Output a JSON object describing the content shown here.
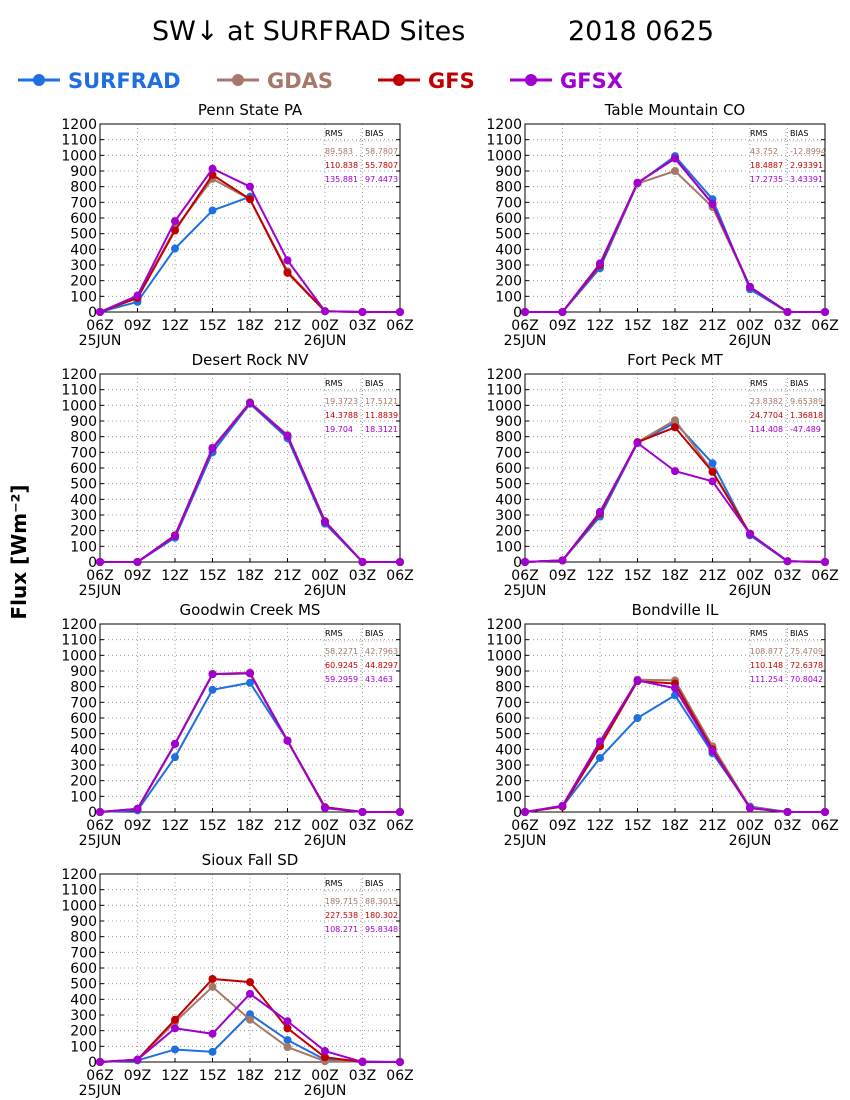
{
  "title": "SW↓ at SURFRAD Sites",
  "date_label": "2018 0625",
  "ylabel": "Flux [Wm⁻²]",
  "legend": [
    {
      "name": "SURFRAD",
      "color": "#1e6fe0"
    },
    {
      "name": "GDAS",
      "color": "#a5786a"
    },
    {
      "name": "GFS",
      "color": "#c00000"
    },
    {
      "name": "GFSX",
      "color": "#a000d0"
    }
  ],
  "stats_headers": [
    "RMS",
    "BIAS"
  ],
  "chart_data": [
    {
      "type": "line",
      "title": "Penn State PA",
      "categories": [
        "06Z",
        "09Z",
        "12Z",
        "15Z",
        "18Z",
        "21Z",
        "00Z",
        "03Z",
        "06Z"
      ],
      "date_labels": [
        "25JUN",
        "26JUN"
      ],
      "ylim": [
        0,
        1200
      ],
      "yticks": [
        0,
        100,
        200,
        300,
        400,
        500,
        600,
        700,
        800,
        900,
        1000,
        1100,
        1200
      ],
      "grid": true,
      "series": [
        {
          "name": "SURFRAD",
          "color": "#1e6fe0",
          "values": [
            0,
            65,
            405,
            648,
            735,
            null,
            null,
            null,
            null
          ]
        },
        {
          "name": "GDAS",
          "color": "#a5786a",
          "values": [
            0,
            90,
            530,
            850,
            720,
            260,
            5,
            0,
            0
          ]
        },
        {
          "name": "GFS",
          "color": "#c00000",
          "values": [
            0,
            90,
            520,
            875,
            720,
            250,
            5,
            0,
            0
          ]
        },
        {
          "name": "GFSX",
          "color": "#a000d0",
          "values": [
            0,
            105,
            580,
            915,
            800,
            330,
            5,
            0,
            0
          ]
        }
      ],
      "stats": [
        {
          "rms": "89.583",
          "bias": "58.7807"
        },
        {
          "rms": "110.838",
          "bias": "55.7807"
        },
        {
          "rms": "135.881",
          "bias": "97.4473"
        }
      ]
    },
    {
      "type": "line",
      "title": "Table Mountain CO",
      "categories": [
        "06Z",
        "09Z",
        "12Z",
        "15Z",
        "18Z",
        "21Z",
        "00Z",
        "03Z",
        "06Z"
      ],
      "date_labels": [
        "25JUN",
        "26JUN"
      ],
      "ylim": [
        0,
        1200
      ],
      "yticks": [
        0,
        100,
        200,
        300,
        400,
        500,
        600,
        700,
        800,
        900,
        1000,
        1100,
        1200
      ],
      "grid": true,
      "series": [
        {
          "name": "SURFRAD",
          "color": "#1e6fe0",
          "values": [
            0,
            0,
            280,
            820,
            995,
            720,
            145,
            0,
            0
          ]
        },
        {
          "name": "GDAS",
          "color": "#a5786a",
          "values": [
            0,
            0,
            300,
            820,
            900,
            670,
            160,
            0,
            0
          ]
        },
        {
          "name": "GFS",
          "color": "#c00000",
          "values": [
            0,
            0,
            300,
            825,
            980,
            690,
            160,
            0,
            0
          ]
        },
        {
          "name": "GFSX",
          "color": "#a000d0",
          "values": [
            0,
            0,
            310,
            825,
            980,
            690,
            160,
            0,
            0
          ]
        }
      ],
      "stats": [
        {
          "rms": "43.752",
          "bias": "-12.8994"
        },
        {
          "rms": "18.4887",
          "bias": "2.93391"
        },
        {
          "rms": "17.2735",
          "bias": "3.43391"
        }
      ]
    },
    {
      "type": "line",
      "title": "Desert Rock NV",
      "categories": [
        "06Z",
        "09Z",
        "12Z",
        "15Z",
        "18Z",
        "21Z",
        "00Z",
        "03Z",
        "06Z"
      ],
      "date_labels": [
        "25JUN",
        "26JUN"
      ],
      "ylim": [
        0,
        1200
      ],
      "yticks": [
        0,
        100,
        200,
        300,
        400,
        500,
        600,
        700,
        800,
        900,
        1000,
        1100,
        1200
      ],
      "grid": true,
      "series": [
        {
          "name": "SURFRAD",
          "color": "#1e6fe0",
          "values": [
            0,
            0,
            155,
            700,
            1010,
            790,
            245,
            0,
            0
          ]
        },
        {
          "name": "GDAS",
          "color": "#a5786a",
          "values": [
            0,
            0,
            170,
            730,
            1020,
            810,
            260,
            0,
            0
          ]
        },
        {
          "name": "GFS",
          "color": "#c00000",
          "values": [
            0,
            0,
            170,
            725,
            1015,
            805,
            260,
            0,
            0
          ]
        },
        {
          "name": "GFSX",
          "color": "#a000d0",
          "values": [
            0,
            0,
            165,
            725,
            1015,
            805,
            255,
            0,
            0
          ]
        }
      ],
      "stats": [
        {
          "rms": "19.3723",
          "bias": "17.5121"
        },
        {
          "rms": "14.3788",
          "bias": "11.8839"
        },
        {
          "rms": "19.704",
          "bias": "18.3121"
        }
      ]
    },
    {
      "type": "line",
      "title": "Fort Peck MT",
      "categories": [
        "06Z",
        "09Z",
        "12Z",
        "15Z",
        "18Z",
        "21Z",
        "00Z",
        "03Z",
        "06Z"
      ],
      "date_labels": [
        "25JUN",
        "26JUN"
      ],
      "ylim": [
        0,
        1200
      ],
      "yticks": [
        0,
        100,
        200,
        300,
        400,
        500,
        600,
        700,
        800,
        900,
        1000,
        1100,
        1200
      ],
      "grid": true,
      "series": [
        {
          "name": "SURFRAD",
          "color": "#1e6fe0",
          "values": [
            0,
            10,
            290,
            760,
            890,
            630,
            170,
            5,
            0
          ]
        },
        {
          "name": "GDAS",
          "color": "#a5786a",
          "values": [
            0,
            10,
            310,
            765,
            905,
            580,
            180,
            5,
            0
          ]
        },
        {
          "name": "GFS",
          "color": "#c00000",
          "values": [
            0,
            10,
            310,
            765,
            860,
            575,
            180,
            5,
            0
          ]
        },
        {
          "name": "GFSX",
          "color": "#a000d0",
          "values": [
            0,
            10,
            320,
            760,
            580,
            515,
            180,
            5,
            0
          ]
        }
      ],
      "stats": [
        {
          "rms": "23.8382",
          "bias": "9.65389"
        },
        {
          "rms": "24.7704",
          "bias": "1.36818"
        },
        {
          "rms": "114.408",
          "bias": "-47.489"
        }
      ]
    },
    {
      "type": "line",
      "title": "Goodwin Creek MS",
      "categories": [
        "06Z",
        "09Z",
        "12Z",
        "15Z",
        "18Z",
        "21Z",
        "00Z",
        "03Z",
        "06Z"
      ],
      "date_labels": [
        "25JUN",
        "26JUN"
      ],
      "ylim": [
        0,
        1200
      ],
      "yticks": [
        0,
        100,
        200,
        300,
        400,
        500,
        600,
        700,
        800,
        900,
        1000,
        1100,
        1200
      ],
      "grid": true,
      "series": [
        {
          "name": "SURFRAD",
          "color": "#1e6fe0",
          "values": [
            0,
            10,
            350,
            780,
            825,
            455,
            30,
            0,
            0
          ]
        },
        {
          "name": "GDAS",
          "color": "#a5786a",
          "values": [
            0,
            20,
            435,
            880,
            890,
            455,
            30,
            0,
            0
          ]
        },
        {
          "name": "GFS",
          "color": "#c00000",
          "values": [
            0,
            20,
            435,
            880,
            885,
            455,
            30,
            0,
            0
          ]
        },
        {
          "name": "GFSX",
          "color": "#a000d0",
          "values": [
            0,
            20,
            435,
            880,
            885,
            455,
            25,
            0,
            0
          ]
        }
      ],
      "stats": [
        {
          "rms": "58.2271",
          "bias": "42.7963"
        },
        {
          "rms": "60.9245",
          "bias": "44.8297"
        },
        {
          "rms": "59.2959",
          "bias": "43.463"
        }
      ]
    },
    {
      "type": "line",
      "title": "Bondville IL",
      "categories": [
        "06Z",
        "09Z",
        "12Z",
        "15Z",
        "18Z",
        "21Z",
        "00Z",
        "03Z",
        "06Z"
      ],
      "date_labels": [
        "25JUN",
        "26JUN"
      ],
      "ylim": [
        0,
        1200
      ],
      "yticks": [
        0,
        100,
        200,
        300,
        400,
        500,
        600,
        700,
        800,
        900,
        1000,
        1100,
        1200
      ],
      "grid": true,
      "series": [
        {
          "name": "SURFRAD",
          "color": "#1e6fe0",
          "values": [
            0,
            35,
            345,
            600,
            745,
            375,
            35,
            0,
            0
          ]
        },
        {
          "name": "GDAS",
          "color": "#a5786a",
          "values": [
            0,
            35,
            430,
            845,
            840,
            420,
            30,
            0,
            0
          ]
        },
        {
          "name": "GFS",
          "color": "#c00000",
          "values": [
            0,
            35,
            420,
            835,
            820,
            400,
            25,
            0,
            0
          ]
        },
        {
          "name": "GFSX",
          "color": "#a000d0",
          "values": [
            0,
            40,
            450,
            840,
            790,
            390,
            25,
            0,
            0
          ]
        }
      ],
      "stats": [
        {
          "rms": "108.877",
          "bias": "75.4709"
        },
        {
          "rms": "110.148",
          "bias": "72.6378"
        },
        {
          "rms": "111.254",
          "bias": "70.8042"
        }
      ]
    },
    {
      "type": "line",
      "title": "Sioux Fall SD",
      "categories": [
        "06Z",
        "09Z",
        "12Z",
        "15Z",
        "18Z",
        "21Z",
        "00Z",
        "03Z",
        "06Z"
      ],
      "date_labels": [
        "25JUN",
        "26JUN"
      ],
      "ylim": [
        0,
        1200
      ],
      "yticks": [
        0,
        100,
        200,
        300,
        400,
        500,
        600,
        700,
        800,
        900,
        1000,
        1100,
        1200
      ],
      "grid": true,
      "series": [
        {
          "name": "SURFRAD",
          "color": "#1e6fe0",
          "values": [
            0,
            10,
            80,
            65,
            305,
            140,
            15,
            0,
            null
          ]
        },
        {
          "name": "GDAS",
          "color": "#a5786a",
          "values": [
            0,
            15,
            255,
            480,
            270,
            95,
            5,
            5,
            0
          ]
        },
        {
          "name": "GFS",
          "color": "#c00000",
          "values": [
            0,
            15,
            270,
            530,
            510,
            215,
            30,
            0,
            0
          ]
        },
        {
          "name": "GFSX",
          "color": "#a000d0",
          "values": [
            0,
            15,
            215,
            180,
            435,
            260,
            70,
            0,
            0
          ]
        }
      ],
      "stats": [
        {
          "rms": "189.715",
          "bias": "88.3015"
        },
        {
          "rms": "227.538",
          "bias": "180.302"
        },
        {
          "rms": "108.271",
          "bias": "95.8348"
        }
      ]
    }
  ]
}
